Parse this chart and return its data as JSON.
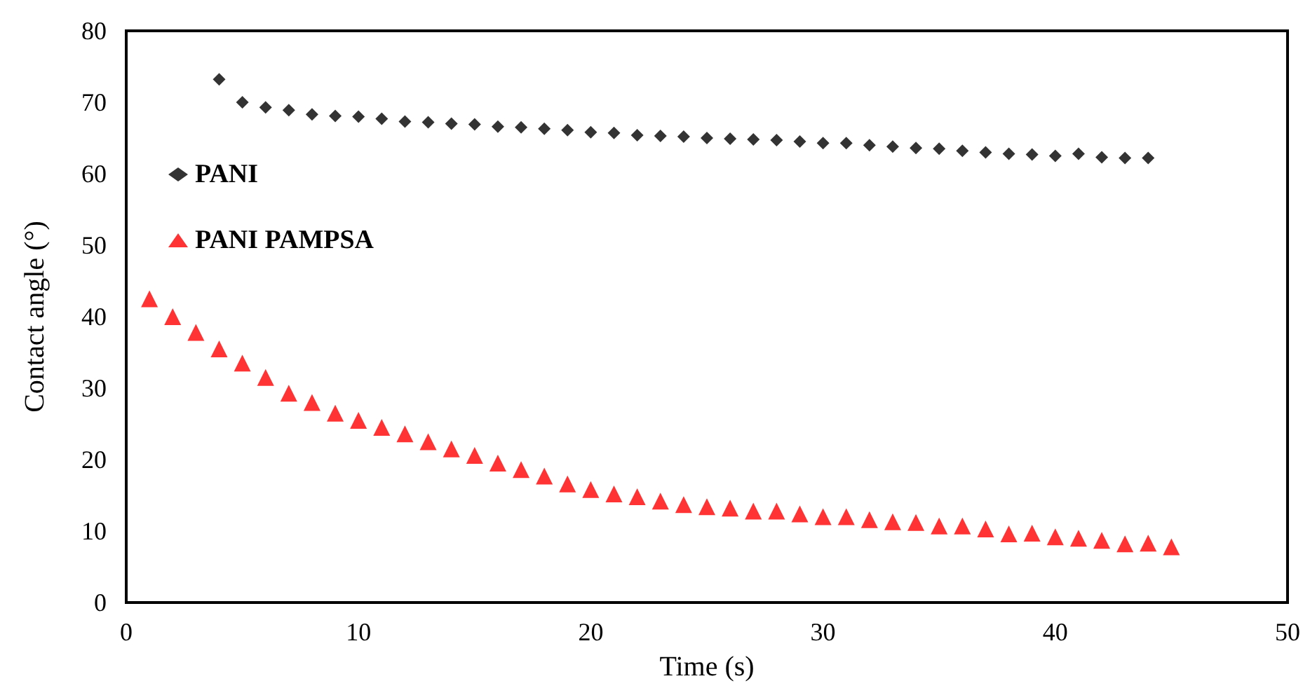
{
  "chart_data": {
    "type": "scatter",
    "xlabel": "Time (s)",
    "ylabel": "Contact angle (°)",
    "xlim": [
      0,
      50
    ],
    "xticks": [
      0,
      10,
      20,
      30,
      40,
      50
    ],
    "ylim": [
      0,
      80
    ],
    "yticks": [
      0,
      10,
      20,
      30,
      40,
      50,
      60,
      70,
      80
    ],
    "grid": false,
    "legend": "top left",
    "series": [
      {
        "name": "PANI",
        "color": "#000000",
        "marker": "diamond",
        "x": [
          4,
          5,
          6,
          7,
          8,
          9,
          10,
          11,
          12,
          13,
          14,
          15,
          16,
          17,
          18,
          19,
          20,
          21,
          22,
          23,
          24,
          25,
          26,
          27,
          28,
          29,
          30,
          31,
          32,
          33,
          34,
          35,
          36,
          37,
          38,
          39,
          40,
          41,
          42,
          43,
          44
        ],
        "values": [
          73.2,
          70,
          69.3,
          68.9,
          68.3,
          68.1,
          68,
          67.7,
          67.3,
          67.2,
          67,
          66.9,
          66.6,
          66.5,
          66.3,
          66.1,
          65.8,
          65.7,
          65.4,
          65.3,
          65.2,
          65,
          64.9,
          64.8,
          64.7,
          64.5,
          64.3,
          64.3,
          64,
          63.8,
          63.6,
          63.5,
          63.2,
          63,
          62.8,
          62.7,
          62.5,
          62.8,
          62.3,
          62.2,
          62.2
        ]
      },
      {
        "name": "PANI PAMPSA",
        "color": "#ff0000",
        "marker": "triangle",
        "x": [
          1,
          2,
          3,
          4,
          5,
          6,
          7,
          8,
          9,
          10,
          11,
          12,
          13,
          14,
          15,
          16,
          17,
          18,
          19,
          20,
          21,
          22,
          23,
          24,
          25,
          26,
          27,
          28,
          29,
          30,
          31,
          32,
          33,
          34,
          35,
          36,
          37,
          38,
          39,
          40,
          41,
          42,
          43,
          44,
          45
        ],
        "values": [
          42.5,
          40,
          37.8,
          35.5,
          33.5,
          31.5,
          29.3,
          28,
          26.5,
          25.5,
          24.5,
          23.6,
          22.5,
          21.5,
          20.6,
          19.5,
          18.6,
          17.7,
          16.6,
          15.8,
          15.2,
          14.8,
          14.2,
          13.7,
          13.4,
          13.2,
          12.8,
          12.8,
          12.4,
          12,
          12,
          11.6,
          11.3,
          11.2,
          10.7,
          10.7,
          10.3,
          9.6,
          9.7,
          9.2,
          9,
          8.7,
          8.2,
          8.3,
          7.8
        ]
      }
    ]
  }
}
